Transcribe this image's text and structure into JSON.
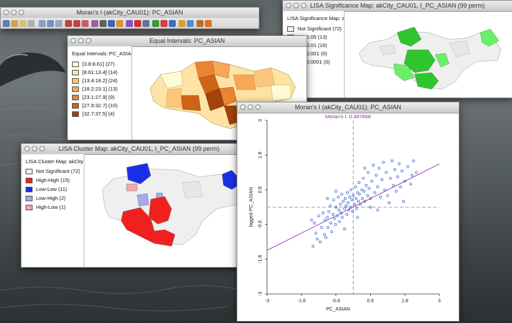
{
  "moran_main": {
    "title": "Moran's I (akCity_CAU01): PC_ASIAN"
  },
  "equal": {
    "title": "Equal Intervals: PC_ASIAN",
    "legend_title": "Equal Intervals: PC_ASIA",
    "items": [
      {
        "label": "[3.8:8.61] (27)",
        "color": "#fffbd4"
      },
      {
        "label": "[8.61:13.4] (14)",
        "color": "#fde3a4"
      },
      {
        "label": "[13.4:18.2] (24)",
        "color": "#fcc67c"
      },
      {
        "label": "[18.2:23.1] (13)",
        "color": "#f7a756"
      },
      {
        "label": "[23.1:27.9] (9)",
        "color": "#e98434"
      },
      {
        "label": "[27.9:32.7] (10)",
        "color": "#cf6417"
      },
      {
        "label": "[32.7:37.5] (4)",
        "color": "#a3430a"
      }
    ]
  },
  "lisa_sig": {
    "title": "LISA Significance Map: akCity_CAU01, I_PC_ASIAN (99 perm)",
    "legend_title": "LISA Significance Map: a",
    "items": [
      {
        "label": "Not Significant (72)",
        "color": "#f0f0f0"
      },
      {
        "label": "p = 0.05 (13)",
        "color": "#68f168"
      },
      {
        "label": "p = 0.01 (16)",
        "color": "#2ec52e"
      },
      {
        "label": "p = 0.001 (0)",
        "color": "#1e8f1e"
      },
      {
        "label": "p = 0.0001 (0)",
        "color": "#0d5c0d"
      }
    ]
  },
  "lisa_cluster": {
    "title": "LISA Cluster Map: akCity_CAU01, I_PC_ASIAN (99 perm)",
    "legend_title": "LISA Cluster Map: akCity",
    "items": [
      {
        "label": "Not Significant (72)",
        "color": "#f0f0f0"
      },
      {
        "label": "High-High (15)",
        "color": "#f02020"
      },
      {
        "label": "Low-Low (11)",
        "color": "#1c2fe8"
      },
      {
        "label": "Low-High (2)",
        "color": "#a8a8f0"
      },
      {
        "label": "High-Low (1)",
        "color": "#f2a8a8"
      }
    ]
  },
  "scatter": {
    "title": "Moran's I (akCity_CAU01): PC_ASIAN",
    "moran_label": "Moran's I: 0.497668",
    "chart_data": {
      "type": "scatter",
      "title": "Moran's I: 0.497668",
      "xlabel": "PC_ASIAN",
      "ylabel": "lagged PC_ASIAN",
      "xlim": [
        -3,
        3
      ],
      "ylim": [
        -3,
        3
      ],
      "xticks": [
        "-3",
        "-1.8",
        "-0.6",
        "0.6",
        "1.8",
        "3"
      ],
      "yticks": [
        "3",
        "1.8",
        "0.6",
        "-0.6",
        "-1.8",
        "-3"
      ],
      "slope": 0.497668,
      "points": [
        [
          -1.45,
          -0.45
        ],
        [
          -1.35,
          -0.55
        ],
        [
          -1.3,
          -0.9
        ],
        [
          -1.25,
          -1.1
        ],
        [
          -1.2,
          -0.3
        ],
        [
          -1.15,
          -1.2
        ],
        [
          -1.1,
          -0.7
        ],
        [
          -1.05,
          -0.2
        ],
        [
          -1.0,
          -0.95
        ],
        [
          -0.98,
          -0.45
        ],
        [
          -0.95,
          -1.05
        ],
        [
          -0.9,
          -0.35
        ],
        [
          -0.88,
          -0.7
        ],
        [
          -0.85,
          -0.15
        ],
        [
          -0.8,
          0.05
        ],
        [
          -0.78,
          -0.55
        ],
        [
          -0.75,
          -0.85
        ],
        [
          -0.7,
          -0.25
        ],
        [
          -0.68,
          0.25
        ],
        [
          -0.65,
          -0.4
        ],
        [
          -0.62,
          -0.6
        ],
        [
          -0.6,
          0.0
        ],
        [
          -0.55,
          -0.3
        ],
        [
          -0.52,
          0.35
        ],
        [
          -0.5,
          -0.1
        ],
        [
          -0.48,
          -0.5
        ],
        [
          -0.45,
          0.1
        ],
        [
          -0.42,
          -0.2
        ],
        [
          -0.4,
          0.45
        ],
        [
          -0.38,
          -0.35
        ],
        [
          -0.35,
          0.2
        ],
        [
          -0.3,
          -0.05
        ],
        [
          -0.28,
          0.3
        ],
        [
          -0.25,
          0.05
        ],
        [
          -0.22,
          -0.25
        ],
        [
          -0.2,
          0.5
        ],
        [
          -0.18,
          0.15
        ],
        [
          -0.15,
          -0.1
        ],
        [
          -0.12,
          0.35
        ],
        [
          -0.1,
          0.0
        ],
        [
          -0.08,
          0.6
        ],
        [
          -0.05,
          0.25
        ],
        [
          -0.02,
          -0.15
        ],
        [
          0.0,
          0.4
        ],
        [
          0.05,
          0.1
        ],
        [
          0.08,
          0.7
        ],
        [
          0.1,
          0.3
        ],
        [
          0.12,
          -0.05
        ],
        [
          0.15,
          0.5
        ],
        [
          0.18,
          0.2
        ],
        [
          0.2,
          0.85
        ],
        [
          0.22,
          0.45
        ],
        [
          0.25,
          0.1
        ],
        [
          0.3,
          0.6
        ],
        [
          0.32,
          0.3
        ],
        [
          0.35,
          1.0
        ],
        [
          0.38,
          0.55
        ],
        [
          0.4,
          0.2
        ],
        [
          0.45,
          0.75
        ],
        [
          0.5,
          0.4
        ],
        [
          0.52,
          1.2
        ],
        [
          0.55,
          0.65
        ],
        [
          0.6,
          0.3
        ],
        [
          0.65,
          0.9
        ],
        [
          0.7,
          1.45
        ],
        [
          0.75,
          0.5
        ],
        [
          0.8,
          1.1
        ],
        [
          0.85,
          0.7
        ],
        [
          0.9,
          1.35
        ],
        [
          0.95,
          0.35
        ],
        [
          1.0,
          0.95
        ],
        [
          1.05,
          1.55
        ],
        [
          1.1,
          0.6
        ],
        [
          1.15,
          1.2
        ],
        [
          1.2,
          0.4
        ],
        [
          1.3,
          1.0
        ],
        [
          1.35,
          1.6
        ],
        [
          1.4,
          0.75
        ],
        [
          1.45,
          1.3
        ],
        [
          1.5,
          0.55
        ],
        [
          1.55,
          1.05
        ],
        [
          1.6,
          1.5
        ],
        [
          1.65,
          0.7
        ],
        [
          1.7,
          1.25
        ],
        [
          1.8,
          0.9
        ],
        [
          1.9,
          1.4
        ],
        [
          2.0,
          0.8
        ],
        [
          2.05,
          1.1
        ],
        [
          2.1,
          1.6
        ],
        [
          2.2,
          1.2
        ],
        [
          -1.4,
          -1.35
        ],
        [
          -0.3,
          -0.75
        ],
        [
          0.15,
          -0.35
        ],
        [
          0.6,
          0.0
        ],
        [
          1.25,
          0.15
        ],
        [
          -0.6,
          0.55
        ],
        [
          0.4,
          1.35
        ],
        [
          -0.9,
          0.3
        ],
        [
          0.85,
          -0.1
        ],
        [
          1.75,
          0.2
        ]
      ]
    }
  }
}
